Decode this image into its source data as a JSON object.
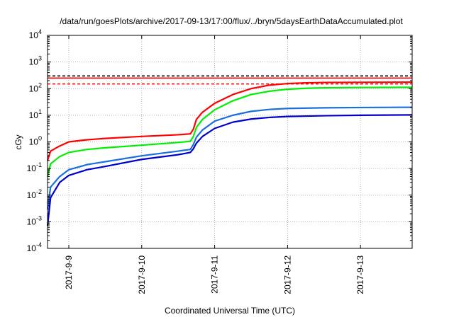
{
  "chart_data": {
    "type": "line",
    "title": "/data/run/goesPlots/archive/2017-09-13/17:00/flux/../bryn/5daysEarthDataAccumulated.plot",
    "xlabel": "Coordinated Universal Time (UTC)",
    "ylabel": "cGy",
    "y_scale": "log",
    "ylim": [
      0.0001,
      10000
    ],
    "xlim": [
      "2017-09-08 17:00",
      "2017-09-13 17:00"
    ],
    "grid": true,
    "x_ticks": [
      "2017-9-9",
      "2017-9-10",
      "2017-9-11",
      "2017-9-12",
      "2017-9-13"
    ],
    "y_ticks": [
      {
        "base": "10",
        "exp": "-4"
      },
      {
        "base": "10",
        "exp": "-3"
      },
      {
        "base": "10",
        "exp": "-2"
      },
      {
        "base": "10",
        "exp": "-1"
      },
      {
        "base": "10",
        "exp": "0"
      },
      {
        "base": "10",
        "exp": "1"
      },
      {
        "base": "10",
        "exp": "2"
      },
      {
        "base": "10",
        "exp": "3"
      },
      {
        "base": "10",
        "exp": "4"
      }
    ],
    "thresholds": [
      {
        "value": 300,
        "color": "#000000",
        "style": "dashed"
      },
      {
        "value": 150,
        "color": "#ff0000",
        "style": "dashed"
      },
      {
        "value": 250,
        "color": "#ff0000",
        "style": "solid"
      }
    ],
    "series": [
      {
        "color": "#ff0000",
        "points": [
          [
            "2017-09-08 17:00",
            0.2
          ],
          [
            "2017-09-08 18:00",
            0.45
          ],
          [
            "2017-09-08 21:00",
            0.7
          ],
          [
            "2017-09-09 00:00",
            1.0
          ],
          [
            "2017-09-09 06:00",
            1.2
          ],
          [
            "2017-09-09 12:00",
            1.35
          ],
          [
            "2017-09-10 00:00",
            1.6
          ],
          [
            "2017-09-10 12:00",
            1.85
          ],
          [
            "2017-09-10 16:00",
            2.0
          ],
          [
            "2017-09-10 17:00",
            3.0
          ],
          [
            "2017-09-10 18:00",
            7.0
          ],
          [
            "2017-09-10 20:00",
            13.0
          ],
          [
            "2017-09-11 00:00",
            28.0
          ],
          [
            "2017-09-11 06:00",
            60.0
          ],
          [
            "2017-09-11 12:00",
            100.0
          ],
          [
            "2017-09-11 18:00",
            135.0
          ],
          [
            "2017-09-12 00:00",
            155.0
          ],
          [
            "2017-09-12 06:00",
            165.0
          ],
          [
            "2017-09-12 12:00",
            170.0
          ],
          [
            "2017-09-13 00:00",
            173.0
          ],
          [
            "2017-09-13 17:00",
            175.0
          ]
        ]
      },
      {
        "color": "#00ee00",
        "points": [
          [
            "2017-09-08 17:00",
            0.05
          ],
          [
            "2017-09-08 18:00",
            0.15
          ],
          [
            "2017-09-08 21:00",
            0.28
          ],
          [
            "2017-09-09 00:00",
            0.4
          ],
          [
            "2017-09-09 06:00",
            0.52
          ],
          [
            "2017-09-09 12:00",
            0.6
          ],
          [
            "2017-09-10 00:00",
            0.75
          ],
          [
            "2017-09-10 12:00",
            0.95
          ],
          [
            "2017-09-10 16:00",
            1.05
          ],
          [
            "2017-09-10 17:00",
            1.6
          ],
          [
            "2017-09-10 18:00",
            3.5
          ],
          [
            "2017-09-10 20:00",
            7.0
          ],
          [
            "2017-09-11 00:00",
            16.0
          ],
          [
            "2017-09-11 06:00",
            35.0
          ],
          [
            "2017-09-11 12:00",
            60.0
          ],
          [
            "2017-09-11 18:00",
            80.0
          ],
          [
            "2017-09-12 00:00",
            95.0
          ],
          [
            "2017-09-12 06:00",
            103.0
          ],
          [
            "2017-09-12 12:00",
            107.0
          ],
          [
            "2017-09-13 00:00",
            110.0
          ],
          [
            "2017-09-13 17:00",
            112.0
          ]
        ]
      },
      {
        "color": "#1a6fe0",
        "points": [
          [
            "2017-09-08 17:00",
            0.003
          ],
          [
            "2017-09-08 18:00",
            0.02
          ],
          [
            "2017-09-08 21:00",
            0.05
          ],
          [
            "2017-09-09 00:00",
            0.09
          ],
          [
            "2017-09-09 06:00",
            0.14
          ],
          [
            "2017-09-09 12:00",
            0.18
          ],
          [
            "2017-09-10 00:00",
            0.3
          ],
          [
            "2017-09-10 12:00",
            0.45
          ],
          [
            "2017-09-10 16:00",
            0.52
          ],
          [
            "2017-09-10 17:00",
            0.8
          ],
          [
            "2017-09-10 18:00",
            1.5
          ],
          [
            "2017-09-10 20:00",
            2.8
          ],
          [
            "2017-09-11 00:00",
            6.0
          ],
          [
            "2017-09-11 06:00",
            10.0
          ],
          [
            "2017-09-11 12:00",
            14.0
          ],
          [
            "2017-09-11 18:00",
            16.5
          ],
          [
            "2017-09-12 00:00",
            18.0
          ],
          [
            "2017-09-12 12:00",
            19.0
          ],
          [
            "2017-09-13 00:00",
            19.5
          ],
          [
            "2017-09-13 17:00",
            20.0
          ]
        ]
      },
      {
        "color": "#0000cc",
        "points": [
          [
            "2017-09-08 17:00",
            0.0007
          ],
          [
            "2017-09-08 18:00",
            0.008
          ],
          [
            "2017-09-08 21:00",
            0.03
          ],
          [
            "2017-09-09 00:00",
            0.055
          ],
          [
            "2017-09-09 06:00",
            0.09
          ],
          [
            "2017-09-09 12:00",
            0.12
          ],
          [
            "2017-09-10 00:00",
            0.22
          ],
          [
            "2017-09-10 12:00",
            0.33
          ],
          [
            "2017-09-10 16:00",
            0.4
          ],
          [
            "2017-09-10 17:00",
            0.55
          ],
          [
            "2017-09-10 18:00",
            0.9
          ],
          [
            "2017-09-10 20:00",
            1.6
          ],
          [
            "2017-09-11 00:00",
            3.2
          ],
          [
            "2017-09-11 06:00",
            5.5
          ],
          [
            "2017-09-11 12:00",
            7.2
          ],
          [
            "2017-09-11 18:00",
            8.3
          ],
          [
            "2017-09-12 00:00",
            9.0
          ],
          [
            "2017-09-12 12:00",
            9.6
          ],
          [
            "2017-09-13 00:00",
            10.0
          ],
          [
            "2017-09-13 17:00",
            10.3
          ]
        ]
      }
    ]
  }
}
